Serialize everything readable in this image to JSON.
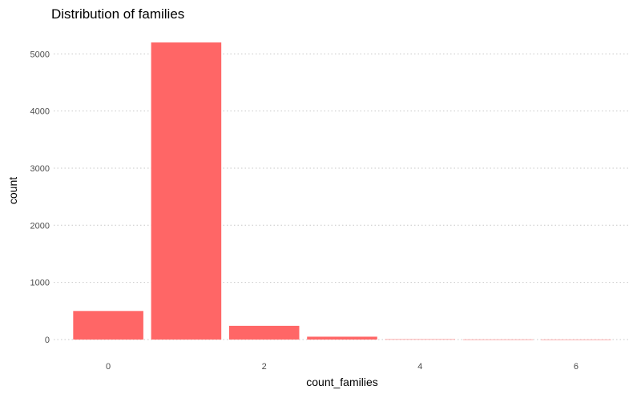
{
  "chart_data": {
    "type": "bar",
    "title": "Distribution of families",
    "xlabel": "count_families",
    "ylabel": "count",
    "x": [
      0,
      1,
      2,
      3,
      4,
      5,
      6
    ],
    "values": [
      500,
      5200,
      240,
      50,
      5,
      2,
      1
    ],
    "xlim": [
      -0.7,
      6.7
    ],
    "ylim": [
      0,
      5200
    ],
    "x_ticks": [
      0,
      2,
      4,
      6
    ],
    "y_ticks": [
      0,
      1000,
      2000,
      3000,
      4000,
      5000
    ],
    "grid": "horizontal-dotted",
    "bar_color": "#ff6666"
  }
}
